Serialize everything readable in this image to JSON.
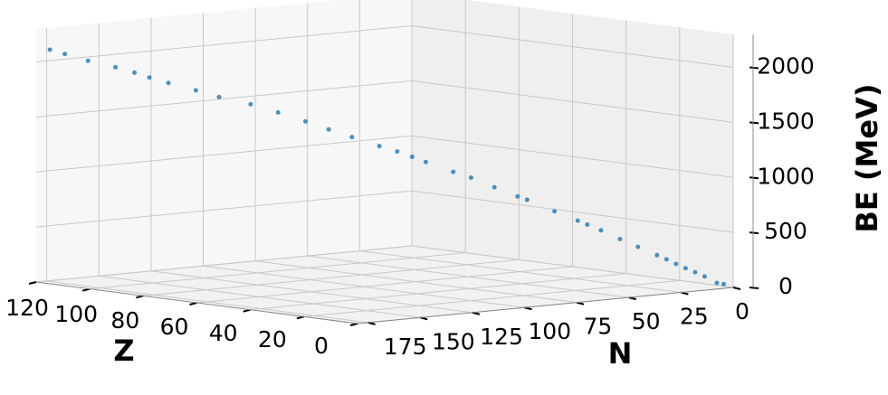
{
  "chart_data": {
    "type": "scatter3d",
    "x_label": "Z",
    "y_label": "N",
    "z_label": "BE (MeV)",
    "xlim": [
      0,
      120
    ],
    "ylim": [
      0,
      180
    ],
    "zlim": [
      0,
      2300
    ],
    "xticks": [
      0,
      20,
      40,
      60,
      80,
      100,
      120
    ],
    "yticks": [
      0,
      25,
      50,
      75,
      100,
      125,
      150,
      175
    ],
    "zticks": [
      0,
      500,
      1000,
      1500,
      2000
    ],
    "grid": true,
    "color": "#1f77b4",
    "x": [
      2,
      3,
      6,
      8,
      10,
      12,
      14,
      16,
      20,
      22,
      26,
      28,
      30,
      34,
      38,
      40,
      44,
      48,
      50,
      54,
      56,
      60,
      62,
      66,
      70,
      74,
      78,
      82,
      86,
      90,
      94,
      98,
      102,
      106,
      110,
      114,
      118
    ],
    "y": [
      2,
      4,
      6,
      8,
      10,
      12,
      14,
      16,
      20,
      26,
      30,
      34,
      36,
      42,
      50,
      52,
      58,
      64,
      70,
      78,
      82,
      84,
      90,
      98,
      104,
      110,
      118,
      126,
      136,
      142,
      150,
      154,
      156,
      160,
      168,
      174,
      176
    ],
    "z": [
      28,
      39,
      92,
      128,
      161,
      198,
      237,
      272,
      342,
      418,
      492,
      545,
      578,
      662,
      768,
      796,
      877,
      964,
      1021,
      1112,
      1160,
      1200,
      1254,
      1338,
      1406,
      1476,
      1560,
      1636,
      1708,
      1767,
      1836,
      1880,
      1915,
      1960,
      2020,
      2080,
      2110
    ]
  }
}
